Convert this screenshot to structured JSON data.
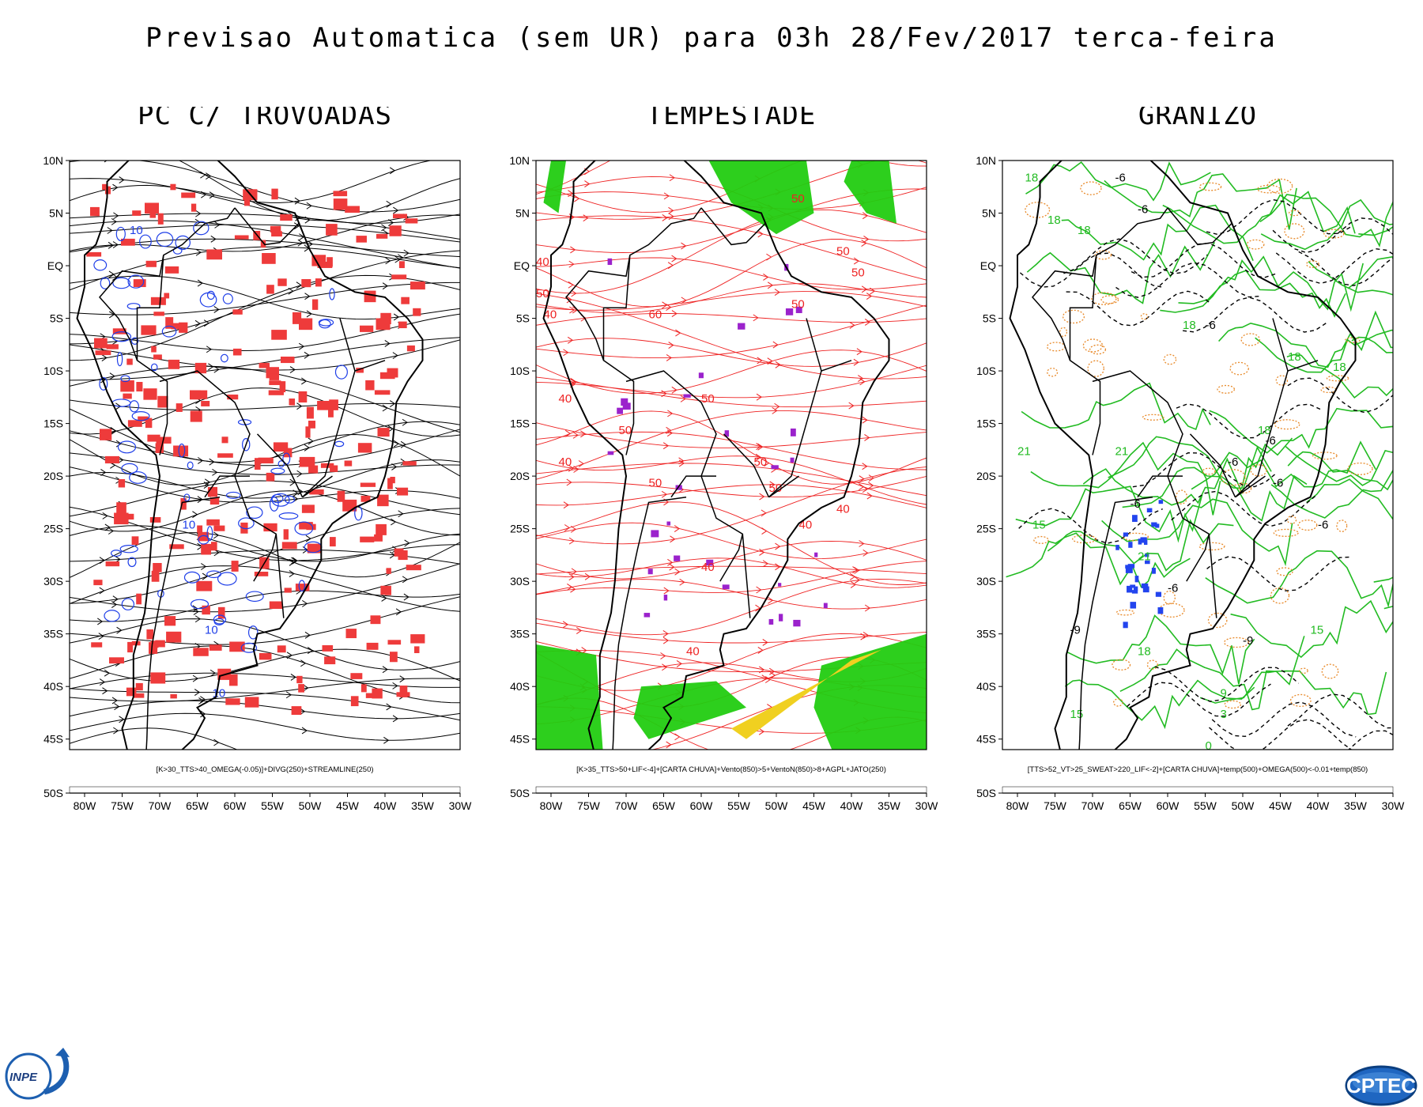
{
  "header": {
    "title": "Previsao Automatica (sem UR) para 03h 28/Fev/2017 terca-feira"
  },
  "axes": {
    "lat_labels": [
      "10N",
      "5N",
      "EQ",
      "5S",
      "10S",
      "15S",
      "20S",
      "25S",
      "30S",
      "35S",
      "40S",
      "45S",
      "50S"
    ],
    "lon_labels": [
      "80W",
      "75W",
      "70W",
      "65W",
      "60W",
      "55W",
      "50W",
      "45W",
      "40W",
      "35W",
      "30W"
    ]
  },
  "panels": [
    {
      "title": "PC C/ TROVOADAS",
      "caption": "[K>30_TTS>40_OMEGA(-0.05)]+DIVG(250)+STREAMLINE(250)",
      "line_color": "#000000",
      "fill_color": "#ee3b3b",
      "contour_color": "#1f3fe8",
      "contour_labels": [
        "10",
        "10",
        "10",
        "10"
      ]
    },
    {
      "title": "TEMPESTADE",
      "caption": "[K>35_TTS>50+LIF<-4]+[CARTA CHUVA]+Vento(850)>5+VentoN(850)>8+AGPL+JATO(250)",
      "line_color": "#ee2222",
      "fill_color": "#22cc11",
      "accent_color": "#f0d020",
      "point_color": "#9b22cc",
      "contour_labels": [
        "50",
        "50",
        "50",
        "50",
        "40",
        "50",
        "60",
        "40",
        "50",
        "50",
        "40",
        "50",
        "40",
        "50",
        "40",
        "50",
        "40",
        "40",
        "40"
      ]
    },
    {
      "title": "GRANIZO",
      "caption": "[TTS>52_VT>25_SWEAT>220_LIF<-2]+[CARTA CHUVA]+temp(500)+OMEGA(500)<-0.01+temp(850)",
      "line_color": "#22bb22",
      "dash_color": "#e88a2a",
      "point_color": "#2244ee",
      "contour_labels": [
        "18",
        "18",
        "18",
        "18",
        "18",
        "18",
        "18",
        "21",
        "21",
        "21",
        "18",
        "15",
        "15",
        "15",
        "9",
        "3",
        "0",
        "-6",
        "-6",
        "-6",
        "-6",
        "-6",
        "-6",
        "-6",
        "-6",
        "-6",
        "-9",
        "-9"
      ]
    }
  ],
  "logos": {
    "left": "INPE",
    "right": "CPTEC"
  }
}
